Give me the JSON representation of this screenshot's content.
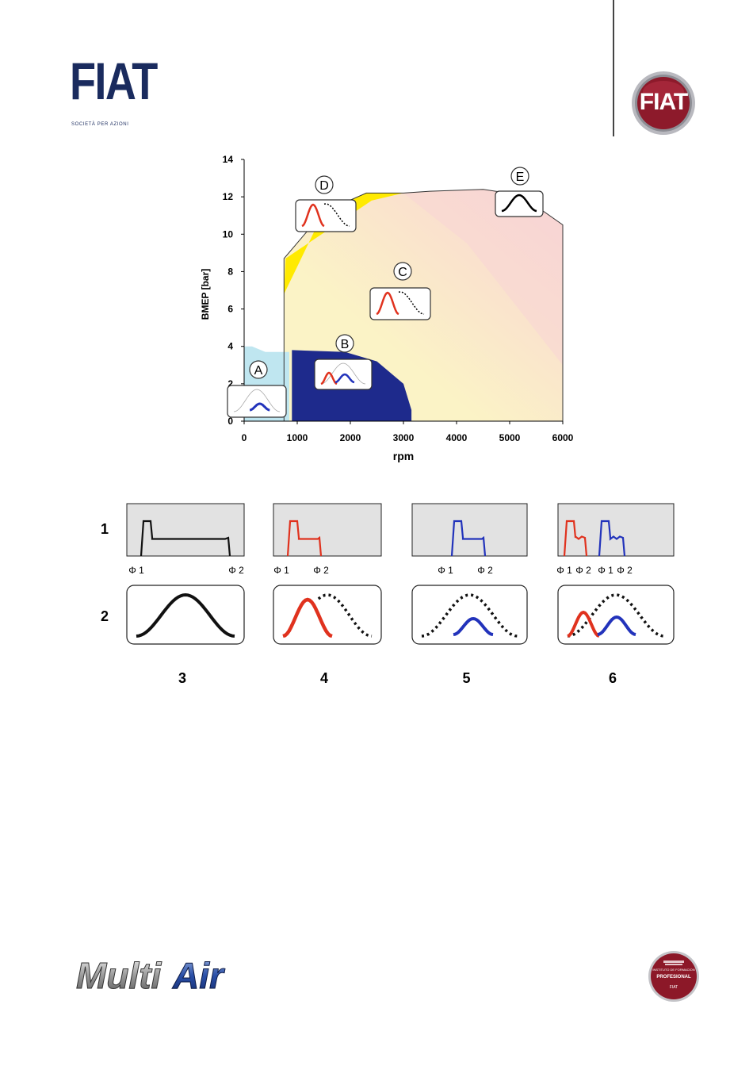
{
  "header": {
    "logo_text": "FIAT",
    "logo_subtitle": "SOCIETÀ PER AZIONI",
    "badge_text": "FIAT"
  },
  "chart_data": {
    "type": "area",
    "xlabel": "rpm",
    "ylabel": "BMEP [bar]",
    "xlim": [
      0,
      6000
    ],
    "ylim": [
      0,
      14
    ],
    "x_ticks": [
      "0",
      "1000",
      "2000",
      "3000",
      "4000",
      "5000",
      "6000"
    ],
    "y_ticks": [
      "0",
      "2",
      "4",
      "6",
      "8",
      "10",
      "12",
      "14"
    ],
    "regions": [
      {
        "label": "A",
        "color": "#bfe6f0",
        "x": [
          0,
          0,
          150,
          400,
          850,
          850
        ],
        "y": [
          0,
          4,
          4,
          3.7,
          3.7,
          0
        ]
      },
      {
        "label": "B",
        "color": "#1e2a8c",
        "x": [
          900,
          900,
          1900,
          2500,
          3000,
          3150,
          3150
        ],
        "y": [
          0,
          3.8,
          3.7,
          3.2,
          2.0,
          0.6,
          0
        ]
      },
      {
        "label": "C",
        "color": "#fbf2c7",
        "x": [
          850,
          750,
          750,
          1500,
          2300,
          3000,
          3500,
          4500,
          5200,
          6000,
          6000
        ],
        "y": [
          0,
          0,
          8.7,
          11.2,
          12.2,
          12.2,
          12.3,
          12.4,
          12.1,
          10.5,
          0
        ]
      },
      {
        "label": "D",
        "color": "#ffea00",
        "x": [
          750,
          780,
          2400,
          3000,
          2300,
          1500
        ],
        "y": [
          6.8,
          8.7,
          11.8,
          12.2,
          12.2,
          11.2
        ]
      },
      {
        "label": "E",
        "color": "#f8d6d6",
        "x": [
          3000,
          3500,
          4500,
          5200,
          6000,
          6000,
          4200
        ],
        "y": [
          12.2,
          12.3,
          12.4,
          12.1,
          10.5,
          3,
          9.5
        ]
      }
    ],
    "region_labels": [
      "A",
      "B",
      "C",
      "D",
      "E"
    ]
  },
  "modes": {
    "row_labels": [
      "1",
      "2"
    ],
    "column_labels": [
      "3",
      "4",
      "5",
      "6"
    ],
    "phi_labels": [
      [
        "Φ 1",
        "Φ 2"
      ],
      [
        "Φ 1",
        "Φ 2"
      ],
      [
        "Φ 1",
        "Φ 2"
      ],
      [
        "Φ 1",
        "Φ 2",
        "Φ 1",
        "Φ 2"
      ]
    ],
    "colors": {
      "full": "#111111",
      "early_close": "#e0321e",
      "late_open": "#2233bb"
    }
  },
  "footer": {
    "multiair_logo": "MultiAir",
    "seal_line1": "INSTITUTO DE FORMACION",
    "seal_line2": "PROFESIONAL",
    "seal_line3": "FIAT"
  }
}
